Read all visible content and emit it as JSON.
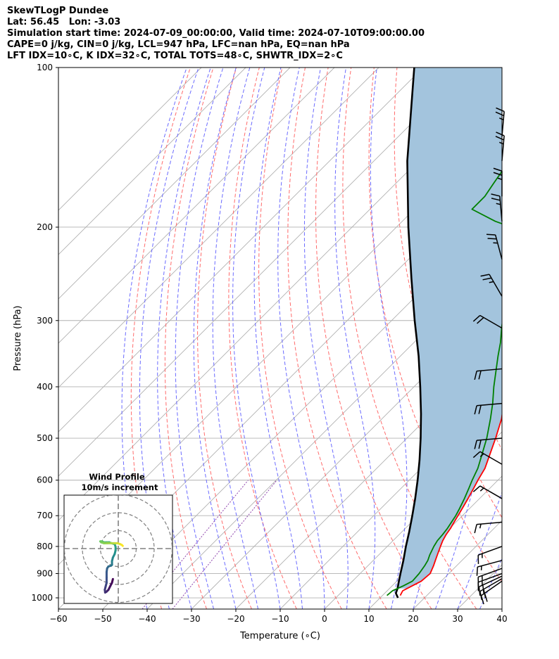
{
  "title": {
    "line1": "SkewTLogP Dundee",
    "line2": "Lat: 56.45   Lon: -3.03",
    "line3": "Simulation start time: 2024-07-09_00:00:00, Valid time: 2024-07-10T09:00:00.00",
    "line4": "CAPE=0 j/kg, CIN=0 j/kg, LCL=947 hPa, LFC=nan hPa, EQ=nan hPa",
    "line5": "LFT IDX=10∘C, K IDX=32∘C, TOTAL TOTS=48∘C, SHWTR_IDX=2∘C"
  },
  "colors": {
    "temperature": "#ff0000",
    "dewpoint": "#008000",
    "parcel": "#000000",
    "cape_fill": "#a3c4dd",
    "dry_adiabat": "#ff6b6b",
    "moist_adiabat": "#6b6bff",
    "mixing_ratio": "#8e44ad",
    "isotherm": "#b0b0b0"
  },
  "chart_data": [
    {
      "type": "line",
      "subtype": "skew-T log-P diagram",
      "xlabel": "Temperature (∘C)",
      "ylabel": "Pressure (hPa)",
      "xlim": [
        -60,
        40
      ],
      "ylim": [
        1050,
        100
      ],
      "y_scale": "log",
      "grid": true,
      "x_ticks": [
        -60,
        -50,
        -40,
        -30,
        -20,
        -10,
        0,
        10,
        20,
        30,
        40
      ],
      "x_tick_labels": [
        "−60",
        "−50",
        "−40",
        "−30",
        "−20",
        "−10",
        "0",
        "10",
        "20",
        "30",
        "40"
      ],
      "y_ticks": [
        1000,
        900,
        800,
        700,
        600,
        500,
        400,
        300,
        200,
        100
      ],
      "y_tick_labels": [
        "1000",
        "900",
        "800",
        "700",
        "600",
        "500",
        "400",
        "300",
        "200",
        "100"
      ],
      "series": [
        {
          "key": "temperature",
          "pressure": [
            990,
            970,
            950,
            930,
            900,
            870,
            850,
            830,
            800,
            780,
            760,
            740,
            720,
            700,
            680,
            650,
            620,
            600,
            570,
            550,
            500,
            460,
            430,
            400,
            370,
            350,
            330,
            310,
            290,
            270,
            250,
            235,
            225,
            210,
            200,
            190,
            180,
            170,
            160,
            150,
            130,
            120,
            110,
            100
          ],
          "temperature_c": [
            14,
            13.5,
            14.5,
            15.5,
            15.8,
            14.8,
            14,
            13.2,
            12,
            11.2,
            10.6,
            10.2,
            9.6,
            9,
            8.4,
            7.4,
            6.3,
            5.5,
            4.4,
            3.2,
            0,
            -3,
            -6,
            -9.5,
            -13,
            -15.5,
            -18,
            -20.5,
            -22.5,
            -24.2,
            -26,
            -26.5,
            -26.5,
            -26,
            -25,
            -24,
            -23,
            -22.5,
            -22,
            -22,
            -21.5,
            -21,
            -20.5,
            -20
          ]
        },
        {
          "key": "dewpoint",
          "pressure": [
            990,
            970,
            950,
            930,
            900,
            870,
            850,
            830,
            800,
            780,
            760,
            740,
            720,
            700,
            680,
            650,
            620,
            600,
            570,
            550,
            500,
            460,
            430,
            400,
            370,
            350,
            330,
            310,
            290,
            270,
            250,
            240,
            230,
            215,
            210,
            200,
            195,
            185,
            180,
            175,
            165,
            155,
            140,
            125,
            110,
            100
          ],
          "temperature_c": [
            11,
            11.2,
            12.5,
            13.5,
            13.3,
            12.8,
            12.3,
            11.5,
            10.5,
            10,
            9.8,
            9.5,
            9,
            8.5,
            7.8,
            6.6,
            5.2,
            4.2,
            2.8,
            1.5,
            -2,
            -5.5,
            -8.5,
            -12,
            -15.5,
            -18,
            -20.5,
            -23.5,
            -26.5,
            -28.5,
            -30,
            -31,
            -33,
            -36,
            -38,
            -44,
            -49,
            -57,
            -57,
            -57,
            -58,
            -59,
            -60.5,
            -62.5,
            -65,
            -67
          ]
        },
        {
          "key": "parcel",
          "pressure": [
            1000,
            980,
            960,
            940,
            920,
            900,
            850,
            800,
            750,
            700,
            650,
            600,
            550,
            500,
            450,
            400,
            350,
            300,
            250,
            200,
            150,
            100
          ],
          "temperature_c": [
            14,
            12.5,
            11.8,
            10.9,
            10.0,
            9.1,
            6.8,
            4.2,
            1.6,
            -1.3,
            -4.5,
            -8.1,
            -12.2,
            -16.9,
            -22.3,
            -28.6,
            -35.9,
            -44.8,
            -55,
            -67.3,
            -82.5,
            -102
          ]
        }
      ]
    },
    {
      "type": "line",
      "subtype": "hodograph",
      "title": "Wind Profile",
      "subtitle": "10m/s increment",
      "ring_increment_ms": 10,
      "rings_ms": [
        10,
        20,
        30
      ],
      "u_ms": [
        -3,
        -3.5,
        -4.5,
        -5.5,
        -6.5,
        -7.3,
        -7.5,
        -7,
        -6.5,
        -6.5,
        -6.5,
        -6.2,
        -5.5,
        -4,
        -3.5,
        -3.5,
        -3,
        -2,
        -1.5,
        -1.5,
        -2,
        -3.8,
        -5,
        -6.5,
        -8,
        -9,
        -10,
        -9.5,
        -8,
        -6,
        -4,
        -2,
        -0.5,
        1,
        2,
        2.5
      ],
      "v_ms": [
        -17,
        -19,
        -21,
        -23,
        -24,
        -24.5,
        -23,
        -21,
        -19,
        -16,
        -13,
        -11,
        -10,
        -9.5,
        -9,
        -7,
        -5,
        -3,
        -1,
        1,
        2.5,
        3,
        3.5,
        3.5,
        3.5,
        4,
        4,
        3.5,
        3,
        3,
        3,
        3,
        3,
        2.5,
        2,
        1.5
      ]
    },
    {
      "type": "scatter",
      "subtype": "wind barbs",
      "pressure": [
        930,
        920,
        910,
        900,
        880,
        850,
        800,
        720,
        650,
        560,
        500,
        430,
        370,
        310,
        270,
        230,
        195,
        175,
        150,
        135
      ],
      "speed_kt": [
        20,
        20,
        20,
        15,
        15,
        15,
        15,
        15,
        15,
        15,
        20,
        20,
        20,
        20,
        25,
        25,
        25,
        25,
        25,
        25
      ],
      "direction_deg": [
        235,
        240,
        245,
        250,
        250,
        255,
        250,
        265,
        300,
        300,
        265,
        265,
        265,
        300,
        330,
        345,
        355,
        0,
        5,
        5
      ]
    }
  ]
}
